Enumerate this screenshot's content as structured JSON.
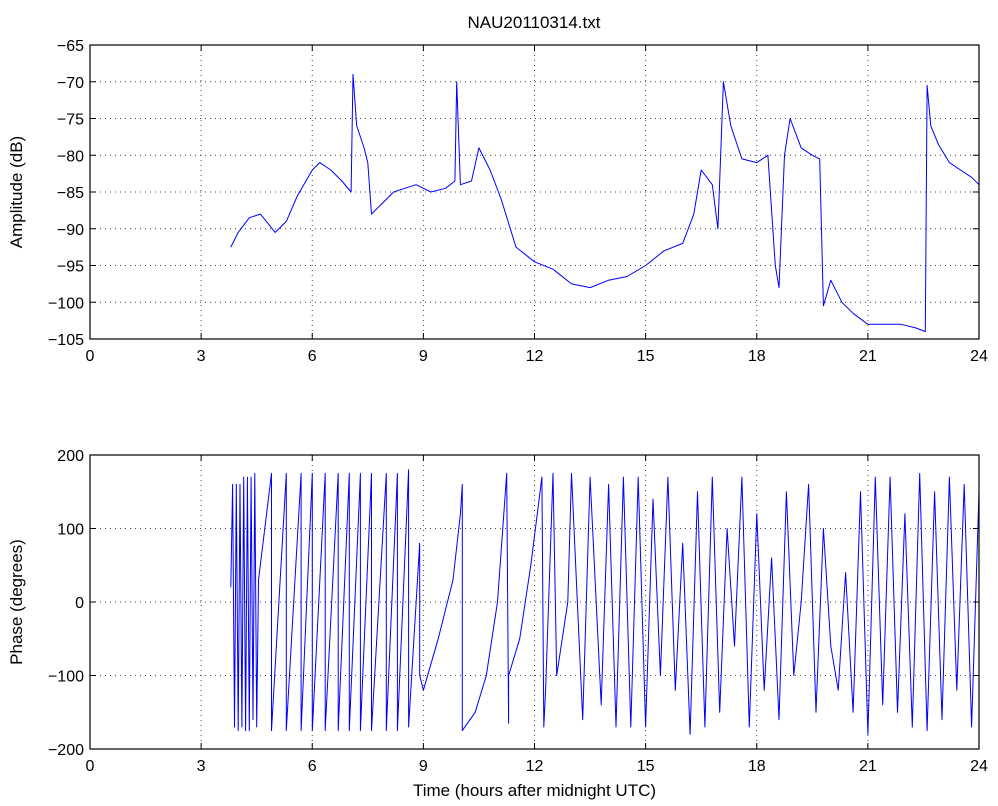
{
  "figure": {
    "title": "NAU20110314.txt"
  },
  "chart_data": [
    {
      "type": "line",
      "xlabel": "",
      "ylabel": "Amplitude (dB)",
      "xlim": [
        0,
        24
      ],
      "ylim": [
        -105,
        -65
      ],
      "xticks": [
        0,
        3,
        6,
        9,
        12,
        15,
        18,
        21,
        24
      ],
      "yticks": [
        -105,
        -100,
        -95,
        -90,
        -85,
        -80,
        -75,
        -70,
        -65
      ],
      "grid": true,
      "color": "#0000ff",
      "series": [
        {
          "x": [
            3.8,
            4.0,
            4.3,
            4.6,
            5.0,
            5.3,
            5.6,
            6.0,
            6.2,
            6.5,
            6.8,
            7.05,
            7.1,
            7.2,
            7.4,
            7.5,
            7.6,
            7.8,
            8.2,
            8.5,
            8.8,
            9.2,
            9.6,
            9.85,
            9.9,
            10.0,
            10.3,
            10.5,
            10.8,
            11.1,
            11.5,
            12.0,
            12.5,
            13.0,
            13.5,
            14.0,
            14.5,
            15.0,
            15.5,
            16.0,
            16.3,
            16.5,
            16.8,
            16.95,
            17.1,
            17.3,
            17.6,
            18.0,
            18.3,
            18.5,
            18.6,
            18.75,
            18.9,
            19.2,
            19.5,
            19.7,
            19.8,
            20.0,
            20.3,
            20.6,
            21.0,
            21.5,
            21.9,
            22.3,
            22.55,
            22.6,
            22.7,
            22.9,
            23.2,
            23.5,
            23.8,
            24.0
          ],
          "y": [
            -92.5,
            -90.5,
            -88.5,
            -88.0,
            -90.5,
            -89.0,
            -85.5,
            -82.0,
            -81.0,
            -82.0,
            -83.5,
            -85.0,
            -69.0,
            -76.0,
            -79.0,
            -81.0,
            -88.0,
            -87.0,
            -85.0,
            -84.5,
            -84.0,
            -85.0,
            -84.5,
            -83.5,
            -70.0,
            -84.0,
            -83.5,
            -79.0,
            -82.0,
            -86.0,
            -92.5,
            -94.5,
            -95.5,
            -97.5,
            -98.0,
            -97.0,
            -96.5,
            -95.0,
            -93.0,
            -92.0,
            -88.0,
            -82.0,
            -84.0,
            -90.0,
            -70.0,
            -76.0,
            -80.5,
            -81.0,
            -80.0,
            -95.0,
            -98.0,
            -80.0,
            -75.0,
            -79.0,
            -80.0,
            -80.5,
            -100.5,
            -97.0,
            -100.0,
            -101.5,
            -103.0,
            -103.0,
            -103.0,
            -103.5,
            -104.0,
            -70.5,
            -76.0,
            -78.5,
            -81.0,
            -82.0,
            -83.0,
            -84.0
          ]
        }
      ]
    },
    {
      "type": "line",
      "xlabel": "Time (hours after midnight UTC)",
      "ylabel": "Phase (degrees)",
      "xlim": [
        0,
        24
      ],
      "ylim": [
        -200,
        200
      ],
      "xticks": [
        0,
        3,
        6,
        9,
        12,
        15,
        18,
        21,
        24
      ],
      "yticks": [
        -200,
        -100,
        0,
        100,
        200
      ],
      "grid": true,
      "color": "#0000ff",
      "series": [
        {
          "x": [
            3.8,
            3.85,
            3.9,
            3.95,
            4.0,
            4.05,
            4.1,
            4.15,
            4.2,
            4.25,
            4.3,
            4.35,
            4.4,
            4.45,
            4.5,
            4.55,
            4.9,
            4.9,
            5.3,
            5.3,
            5.7,
            5.7,
            6.0,
            6.0,
            6.35,
            6.35,
            6.7,
            6.7,
            7.0,
            7.0,
            7.3,
            7.3,
            7.6,
            7.6,
            8.0,
            8.0,
            8.3,
            8.3,
            8.6,
            8.6,
            8.9,
            8.9,
            9.0,
            9.4,
            9.8,
            10.0,
            10.05,
            10.05,
            10.4,
            10.7,
            11.0,
            11.25,
            11.3,
            11.3,
            11.6,
            11.9,
            12.2,
            12.25,
            12.3,
            12.5,
            12.6,
            12.9,
            13.0,
            13.3,
            13.5,
            13.8,
            14.0,
            14.2,
            14.4,
            14.6,
            14.8,
            15.0,
            15.2,
            15.4,
            15.6,
            15.8,
            16.0,
            16.2,
            16.4,
            16.6,
            16.8,
            17.0,
            17.2,
            17.4,
            17.6,
            17.8,
            18.0,
            18.2,
            18.4,
            18.6,
            18.8,
            19.0,
            19.2,
            19.4,
            19.6,
            19.8,
            20.0,
            20.2,
            20.4,
            20.6,
            20.8,
            21.0,
            21.2,
            21.4,
            21.6,
            21.8,
            22.0,
            22.2,
            22.4,
            22.6,
            22.8,
            23.0,
            23.2,
            23.4,
            23.6,
            23.8,
            24.0
          ],
          "y": [
            20,
            160,
            -170,
            160,
            -175,
            160,
            -170,
            170,
            -175,
            170,
            -175,
            170,
            -160,
            175,
            -170,
            30,
            175,
            -175,
            175,
            -175,
            175,
            -175,
            175,
            -175,
            175,
            -175,
            175,
            -175,
            175,
            -175,
            175,
            -175,
            175,
            -175,
            175,
            -175,
            175,
            -175,
            180,
            -170,
            80,
            -100,
            -120,
            -50,
            30,
            120,
            160,
            -175,
            -150,
            -100,
            0,
            175,
            -165,
            -100,
            -50,
            50,
            170,
            -170,
            -120,
            175,
            -100,
            0,
            175,
            -160,
            170,
            -140,
            160,
            -170,
            170,
            -170,
            170,
            -170,
            140,
            -100,
            170,
            -120,
            80,
            -180,
            150,
            -170,
            170,
            -150,
            100,
            -60,
            170,
            -170,
            120,
            -120,
            60,
            -160,
            150,
            -100,
            0,
            160,
            -150,
            100,
            -60,
            -120,
            40,
            -150,
            150,
            -180,
            170,
            -140,
            170,
            -150,
            120,
            -170,
            175,
            -175,
            150,
            -160,
            170,
            -120,
            160,
            -170,
            150
          ]
        }
      ]
    }
  ]
}
